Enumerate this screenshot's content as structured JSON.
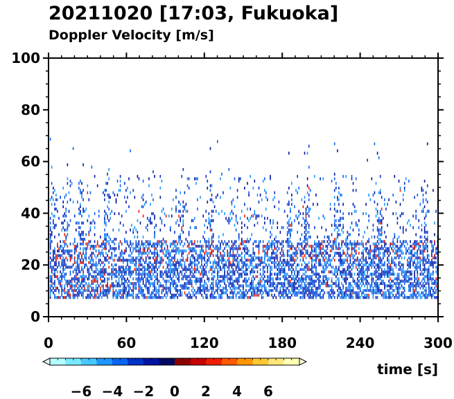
{
  "chart_data": {
    "type": "heatmap",
    "title": "20211020 [17:03, Fukuoka]",
    "subtitle": "Doppler Velocity [m/s]",
    "xlabel": "time [s]",
    "ylabel": "",
    "xlim": [
      0,
      300
    ],
    "ylim": [
      0,
      100
    ],
    "x_ticks": [
      0,
      60,
      120,
      180,
      240,
      300
    ],
    "y_ticks": [
      0,
      20,
      40,
      60,
      80,
      100
    ],
    "grid": false,
    "colorbar": {
      "range": [
        -8,
        8
      ],
      "tick_values": [
        -6,
        -4,
        -2,
        0,
        2,
        4,
        6
      ],
      "tick_labels": [
        "−6",
        "−4",
        "−2",
        "0",
        "2",
        "4",
        "6"
      ],
      "negative_colors": [
        "#b4ffff",
        "#78eaff",
        "#46c8ff",
        "#1e96ff",
        "#0a64f0",
        "#0032c8",
        "#0014a0",
        "#000a64"
      ],
      "positive_colors": [
        "#8c0000",
        "#c80000",
        "#f01e00",
        "#ff5a00",
        "#ff9600",
        "#ffc832",
        "#ffe678",
        "#ffffb4"
      ]
    },
    "velocity_field": {
      "dominant_sign": "negative",
      "typical_velocity": [
        -3,
        -1
      ],
      "dense_layer_height": [
        8,
        30
      ],
      "sparse_layer_height": [
        30,
        55
      ],
      "max_echo_height": 70,
      "convective_columns_time": [
        3,
        12,
        25,
        45,
        102,
        125,
        185,
        198,
        222,
        255,
        290
      ]
    }
  }
}
